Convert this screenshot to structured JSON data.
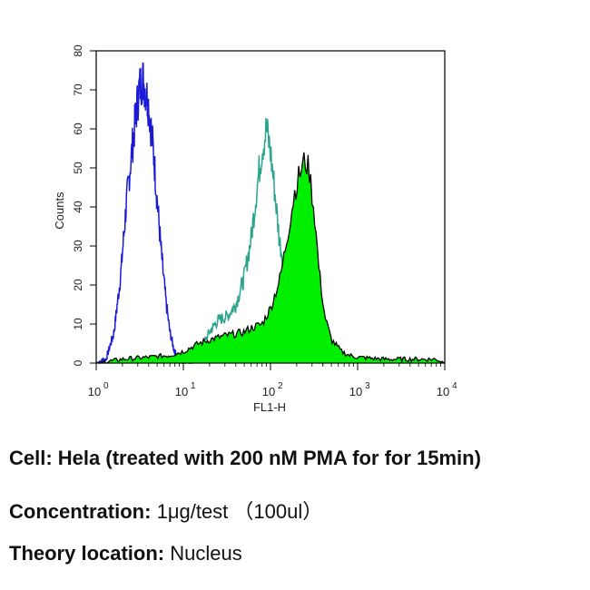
{
  "chart_data": {
    "type": "area",
    "xscale": "log",
    "xlim": [
      1,
      10000
    ],
    "ylim": [
      0,
      80
    ],
    "xlabel": "FL1-H",
    "ylabel": "Counts",
    "x_ticks": [
      {
        "base": "10",
        "exp": "0"
      },
      {
        "base": "10",
        "exp": "1"
      },
      {
        "base": "10",
        "exp": "2"
      },
      {
        "base": "10",
        "exp": "3"
      },
      {
        "base": "10",
        "exp": "4"
      }
    ],
    "y_ticks": [
      "0",
      "10",
      "20",
      "30",
      "40",
      "50",
      "60",
      "70",
      "80"
    ],
    "series": [
      {
        "style": "line",
        "color": "#1a1ad6",
        "x": [
          1.0,
          1.3,
          1.6,
          1.9,
          2.2,
          2.5,
          2.8,
          3.1,
          3.4,
          3.7,
          4.0,
          4.5,
          5.0,
          5.6,
          6.3,
          7.0,
          7.9,
          8.9,
          10.0,
          11.5,
          13.0
        ],
        "y": [
          0,
          1,
          8,
          22,
          40,
          52,
          62,
          70,
          73,
          70,
          66,
          55,
          42,
          28,
          16,
          8,
          3,
          1,
          0.5,
          0,
          0
        ]
      },
      {
        "style": "line",
        "color": "#2aa58a",
        "x": [
          10,
          16,
          20,
          25,
          32,
          40,
          50,
          60,
          70,
          80,
          90,
          100,
          112,
          126,
          140,
          160,
          180,
          200,
          250,
          300,
          400,
          500
        ],
        "y": [
          1,
          4,
          8,
          11,
          12,
          15,
          22,
          32,
          45,
          55,
          60,
          54,
          44,
          32,
          26,
          18,
          12,
          8,
          3,
          1,
          0.5,
          0
        ]
      },
      {
        "style": "filled",
        "color": "#00ee00",
        "edge": "#000000",
        "x": [
          1.0,
          2.0,
          4.0,
          7.0,
          10.0,
          15.0,
          20.0,
          30.0,
          40.0,
          50.0,
          60.0,
          80.0,
          100,
          130,
          160,
          190,
          220,
          250,
          280,
          320,
          360,
          420,
          500,
          650,
          800,
          1000,
          1500,
          2000,
          3000,
          5000,
          8000,
          10000
        ],
        "y": [
          0,
          1,
          1.5,
          2,
          3,
          5,
          6,
          7,
          7.5,
          8,
          9,
          10,
          14,
          22,
          34,
          44,
          49,
          52,
          49,
          38,
          24,
          12,
          6,
          3,
          2,
          1.5,
          1.2,
          1,
          1,
          1,
          1,
          0
        ]
      }
    ]
  },
  "caption": {
    "line1": "Cell: Hela (treated with 200 nM PMA for for 15min)",
    "line2_label": "Concentration:",
    "line2_value": "1μg/test （100ul）",
    "line3_label": "Theory location:",
    "line3_value": "Nucleus"
  }
}
